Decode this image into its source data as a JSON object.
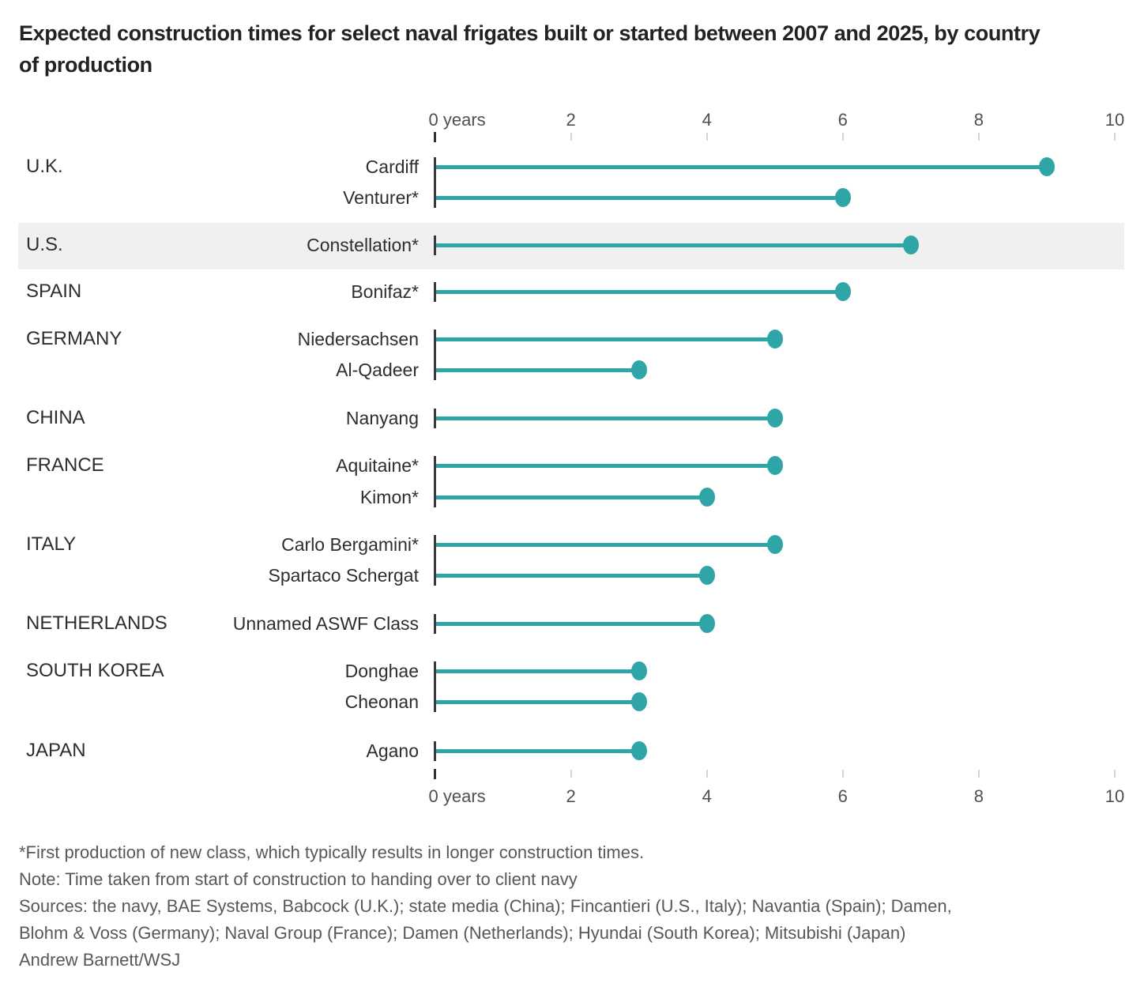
{
  "title_lines": [
    "Expected construction times for select naval frigates built or started between 2007 and 2025, by country",
    "of production"
  ],
  "colors": {
    "accent": "#2fa5a8",
    "highlight_band": "#f0f0f1",
    "axis_dark": "#333333",
    "tick_light": "#d6d6d6",
    "title_text": "#222222",
    "label_text": "#2e2e2e",
    "axis_text": "#4f4f4f",
    "note_text": "#585858"
  },
  "chart_data": {
    "type": "bar",
    "variant": "horizontal-lollipop",
    "unit": "years",
    "x_axis": {
      "range": [
        0,
        10
      ],
      "ticks": [
        0,
        2,
        4,
        6,
        8,
        10
      ],
      "tick_labels": [
        "0 years",
        "2",
        "4",
        "6",
        "8",
        "10"
      ],
      "position": "top and bottom",
      "grid": false
    },
    "groups": [
      {
        "country": "U.K.",
        "highlight": false,
        "ships": [
          {
            "name": "Cardiff",
            "years": 9
          },
          {
            "name": "Venturer*",
            "years": 6
          }
        ]
      },
      {
        "country": "U.S.",
        "highlight": true,
        "ships": [
          {
            "name": "Constellation*",
            "years": 7
          }
        ]
      },
      {
        "country": "SPAIN",
        "highlight": false,
        "ships": [
          {
            "name": "Bonifaz*",
            "years": 6
          }
        ]
      },
      {
        "country": "GERMANY",
        "highlight": false,
        "ships": [
          {
            "name": "Niedersachsen",
            "years": 5
          },
          {
            "name": "Al-Qadeer",
            "years": 3
          }
        ]
      },
      {
        "country": "CHINA",
        "highlight": false,
        "ships": [
          {
            "name": "Nanyang",
            "years": 5
          }
        ]
      },
      {
        "country": "FRANCE",
        "highlight": false,
        "ships": [
          {
            "name": "Aquitaine*",
            "years": 5
          },
          {
            "name": "Kimon*",
            "years": 4
          }
        ]
      },
      {
        "country": "ITALY",
        "highlight": false,
        "ships": [
          {
            "name": "Carlo Bergamini*",
            "years": 5
          },
          {
            "name": "Spartaco Schergat",
            "years": 4
          }
        ]
      },
      {
        "country": "NETHERLANDS",
        "highlight": false,
        "ships": [
          {
            "name": "Unnamed ASWF Class",
            "years": 4
          }
        ]
      },
      {
        "country": "SOUTH KOREA",
        "highlight": false,
        "ships": [
          {
            "name": "Donghae",
            "years": 3
          },
          {
            "name": "Cheonan",
            "years": 3
          }
        ]
      },
      {
        "country": "JAPAN",
        "highlight": false,
        "ships": [
          {
            "name": "Agano",
            "years": 3
          }
        ]
      }
    ]
  },
  "footnotes": [
    "*First production of new class, which typically results in longer construction times.",
    "Note: Time taken from start of construction to handing over to client navy",
    "Sources: the navy, BAE Systems, Babcock (U.K.); state media (China); Fincantieri (U.S., Italy); Navantia (Spain); Damen,",
    "Blohm & Voss (Germany); Naval Group (France); Damen (Netherlands); Hyundai (South Korea); Mitsubishi (Japan)",
    "Andrew Barnett/WSJ"
  ]
}
